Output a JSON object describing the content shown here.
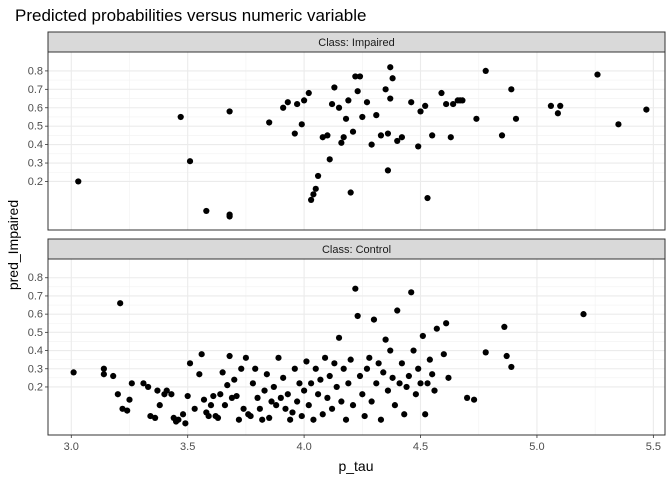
{
  "chart_data": {
    "type": "scatter",
    "title": "Predicted probabilities versus numeric variable",
    "xlabel": "p_tau",
    "ylabel": "pred_Impaired",
    "xlim": [
      2.9,
      5.55
    ],
    "xticks": [
      3.0,
      3.5,
      4.0,
      4.5,
      5.0,
      5.5
    ],
    "xtick_labels": [
      "3.0",
      "3.5",
      "4.0",
      "4.5",
      "5.0",
      "5.5"
    ],
    "yticks": [
      0.2,
      0.3,
      0.4,
      0.5,
      0.6,
      0.7,
      0.8
    ],
    "ytick_labels": [
      "0.2",
      "0.3",
      "0.4",
      "0.5",
      "0.6",
      "0.7",
      "0.8"
    ],
    "y_scale": "probability axis, ticks 0.2–0.8, points extend below 0.2",
    "grid": true,
    "theme": "bw",
    "point_color": "#000000",
    "panels": [
      {
        "strip": "Class: Impaired",
        "points": [
          [
            3.03,
            0.2
          ],
          [
            3.47,
            0.55
          ],
          [
            3.51,
            0.31
          ],
          [
            3.58,
            0.04
          ],
          [
            3.68,
            0.58
          ],
          [
            3.68,
            0.02
          ],
          [
            3.68,
            0.01
          ],
          [
            3.85,
            0.52
          ],
          [
            3.91,
            0.6
          ],
          [
            3.93,
            0.63
          ],
          [
            3.96,
            0.46
          ],
          [
            3.97,
            0.62
          ],
          [
            3.99,
            0.51
          ],
          [
            4.0,
            0.64
          ],
          [
            4.02,
            0.68
          ],
          [
            4.03,
            0.1
          ],
          [
            4.04,
            0.13
          ],
          [
            4.05,
            0.16
          ],
          [
            4.06,
            0.23
          ],
          [
            4.08,
            0.44
          ],
          [
            4.1,
            0.45
          ],
          [
            4.11,
            0.32
          ],
          [
            4.12,
            0.62
          ],
          [
            4.13,
            0.71
          ],
          [
            4.15,
            0.6
          ],
          [
            4.16,
            0.41
          ],
          [
            4.17,
            0.44
          ],
          [
            4.18,
            0.54
          ],
          [
            4.19,
            0.64
          ],
          [
            4.2,
            0.14
          ],
          [
            4.21,
            0.47
          ],
          [
            4.22,
            0.77
          ],
          [
            4.23,
            0.69
          ],
          [
            4.24,
            0.77
          ],
          [
            4.25,
            0.55
          ],
          [
            4.27,
            0.63
          ],
          [
            4.29,
            0.4
          ],
          [
            4.31,
            0.56
          ],
          [
            4.33,
            0.45
          ],
          [
            4.35,
            0.7
          ],
          [
            4.36,
            0.46
          ],
          [
            4.36,
            0.26
          ],
          [
            4.37,
            0.82
          ],
          [
            4.37,
            0.65
          ],
          [
            4.38,
            0.76
          ],
          [
            4.4,
            0.42
          ],
          [
            4.42,
            0.44
          ],
          [
            4.46,
            0.63
          ],
          [
            4.49,
            0.39
          ],
          [
            4.5,
            0.58
          ],
          [
            4.52,
            0.61
          ],
          [
            4.53,
            0.11
          ],
          [
            4.55,
            0.45
          ],
          [
            4.59,
            0.68
          ],
          [
            4.61,
            0.62
          ],
          [
            4.63,
            0.44
          ],
          [
            4.64,
            0.62
          ],
          [
            4.66,
            0.64
          ],
          [
            4.67,
            0.64
          ],
          [
            4.68,
            0.64
          ],
          [
            4.74,
            0.54
          ],
          [
            4.78,
            0.8
          ],
          [
            4.85,
            0.45
          ],
          [
            4.89,
            0.7
          ],
          [
            4.91,
            0.54
          ],
          [
            5.06,
            0.61
          ],
          [
            5.09,
            0.57
          ],
          [
            5.1,
            0.61
          ],
          [
            5.26,
            0.78
          ],
          [
            5.35,
            0.51
          ],
          [
            5.47,
            0.59
          ]
        ]
      },
      {
        "strip": "Class: Control",
        "points": [
          [
            3.01,
            0.28
          ],
          [
            3.14,
            0.3
          ],
          [
            3.14,
            0.27
          ],
          [
            3.18,
            0.26
          ],
          [
            3.2,
            0.16
          ],
          [
            3.21,
            0.66
          ],
          [
            3.22,
            0.08
          ],
          [
            3.24,
            0.07
          ],
          [
            3.25,
            0.13
          ],
          [
            3.26,
            0.22
          ],
          [
            3.31,
            0.22
          ],
          [
            3.33,
            0.2
          ],
          [
            3.34,
            0.04
          ],
          [
            3.36,
            0.03
          ],
          [
            3.37,
            0.18
          ],
          [
            3.38,
            0.1
          ],
          [
            3.4,
            0.16
          ],
          [
            3.41,
            0.18
          ],
          [
            3.43,
            0.16
          ],
          [
            3.44,
            0.03
          ],
          [
            3.45,
            0.01
          ],
          [
            3.46,
            0.02
          ],
          [
            3.48,
            0.05
          ],
          [
            3.49,
            0.0
          ],
          [
            3.5,
            0.15
          ],
          [
            3.51,
            0.33
          ],
          [
            3.53,
            0.08
          ],
          [
            3.55,
            0.27
          ],
          [
            3.56,
            0.38
          ],
          [
            3.57,
            0.13
          ],
          [
            3.58,
            0.06
          ],
          [
            3.59,
            0.04
          ],
          [
            3.6,
            0.1
          ],
          [
            3.61,
            0.15
          ],
          [
            3.62,
            0.04
          ],
          [
            3.63,
            0.03
          ],
          [
            3.64,
            0.16
          ],
          [
            3.65,
            0.28
          ],
          [
            3.66,
            0.1
          ],
          [
            3.67,
            0.21
          ],
          [
            3.68,
            0.37
          ],
          [
            3.69,
            0.14
          ],
          [
            3.7,
            0.24
          ],
          [
            3.71,
            0.15
          ],
          [
            3.72,
            0.02
          ],
          [
            3.73,
            0.3
          ],
          [
            3.74,
            0.08
          ],
          [
            3.75,
            0.36
          ],
          [
            3.76,
            0.05
          ],
          [
            3.77,
            0.04
          ],
          [
            3.78,
            0.22
          ],
          [
            3.79,
            0.3
          ],
          [
            3.8,
            0.14
          ],
          [
            3.81,
            0.08
          ],
          [
            3.82,
            0.02
          ],
          [
            3.83,
            0.18
          ],
          [
            3.84,
            0.27
          ],
          [
            3.85,
            0.03
          ],
          [
            3.86,
            0.12
          ],
          [
            3.87,
            0.2
          ],
          [
            3.88,
            0.1
          ],
          [
            3.89,
            0.36
          ],
          [
            3.9,
            0.14
          ],
          [
            3.91,
            0.25
          ],
          [
            3.92,
            0.08
          ],
          [
            3.93,
            0.16
          ],
          [
            3.94,
            0.02
          ],
          [
            3.95,
            0.06
          ],
          [
            3.96,
            0.3
          ],
          [
            3.97,
            0.12
          ],
          [
            3.98,
            0.22
          ],
          [
            3.99,
            0.04
          ],
          [
            4.0,
            0.18
          ],
          [
            4.01,
            0.34
          ],
          [
            4.02,
            0.1
          ],
          [
            4.03,
            0.22
          ],
          [
            4.04,
            0.02
          ],
          [
            4.05,
            0.3
          ],
          [
            4.06,
            0.16
          ],
          [
            4.07,
            0.24
          ],
          [
            4.08,
            0.05
          ],
          [
            4.09,
            0.36
          ],
          [
            4.1,
            0.14
          ],
          [
            4.11,
            0.26
          ],
          [
            4.12,
            0.08
          ],
          [
            4.13,
            0.33
          ],
          [
            4.14,
            0.2
          ],
          [
            4.15,
            0.47
          ],
          [
            4.16,
            0.12
          ],
          [
            4.17,
            0.3
          ],
          [
            4.18,
            0.02
          ],
          [
            4.19,
            0.22
          ],
          [
            4.2,
            0.35
          ],
          [
            4.21,
            0.1
          ],
          [
            4.22,
            0.74
          ],
          [
            4.23,
            0.59
          ],
          [
            4.24,
            0.26
          ],
          [
            4.25,
            0.16
          ],
          [
            4.26,
            0.04
          ],
          [
            4.27,
            0.3
          ],
          [
            4.28,
            0.36
          ],
          [
            4.29,
            0.12
          ],
          [
            4.3,
            0.57
          ],
          [
            4.31,
            0.22
          ],
          [
            4.32,
            0.33
          ],
          [
            4.33,
            0.02
          ],
          [
            4.34,
            0.28
          ],
          [
            4.35,
            0.46
          ],
          [
            4.36,
            0.18
          ],
          [
            4.37,
            0.4
          ],
          [
            4.38,
            0.25
          ],
          [
            4.39,
            0.1
          ],
          [
            4.4,
            0.62
          ],
          [
            4.41,
            0.22
          ],
          [
            4.42,
            0.33
          ],
          [
            4.43,
            0.05
          ],
          [
            4.44,
            0.2
          ],
          [
            4.45,
            0.26
          ],
          [
            4.46,
            0.72
          ],
          [
            4.47,
            0.4
          ],
          [
            4.48,
            0.16
          ],
          [
            4.49,
            0.3
          ],
          [
            4.5,
            0.22
          ],
          [
            4.51,
            0.48
          ],
          [
            4.52,
            0.05
          ],
          [
            4.53,
            0.22
          ],
          [
            4.54,
            0.35
          ],
          [
            4.55,
            0.27
          ],
          [
            4.56,
            0.18
          ],
          [
            4.57,
            0.52
          ],
          [
            4.6,
            0.38
          ],
          [
            4.61,
            0.55
          ],
          [
            4.62,
            0.25
          ],
          [
            4.7,
            0.14
          ],
          [
            4.73,
            0.13
          ],
          [
            4.78,
            0.39
          ],
          [
            4.86,
            0.53
          ],
          [
            4.87,
            0.37
          ],
          [
            4.89,
            0.31
          ],
          [
            5.2,
            0.6
          ]
        ]
      }
    ]
  }
}
